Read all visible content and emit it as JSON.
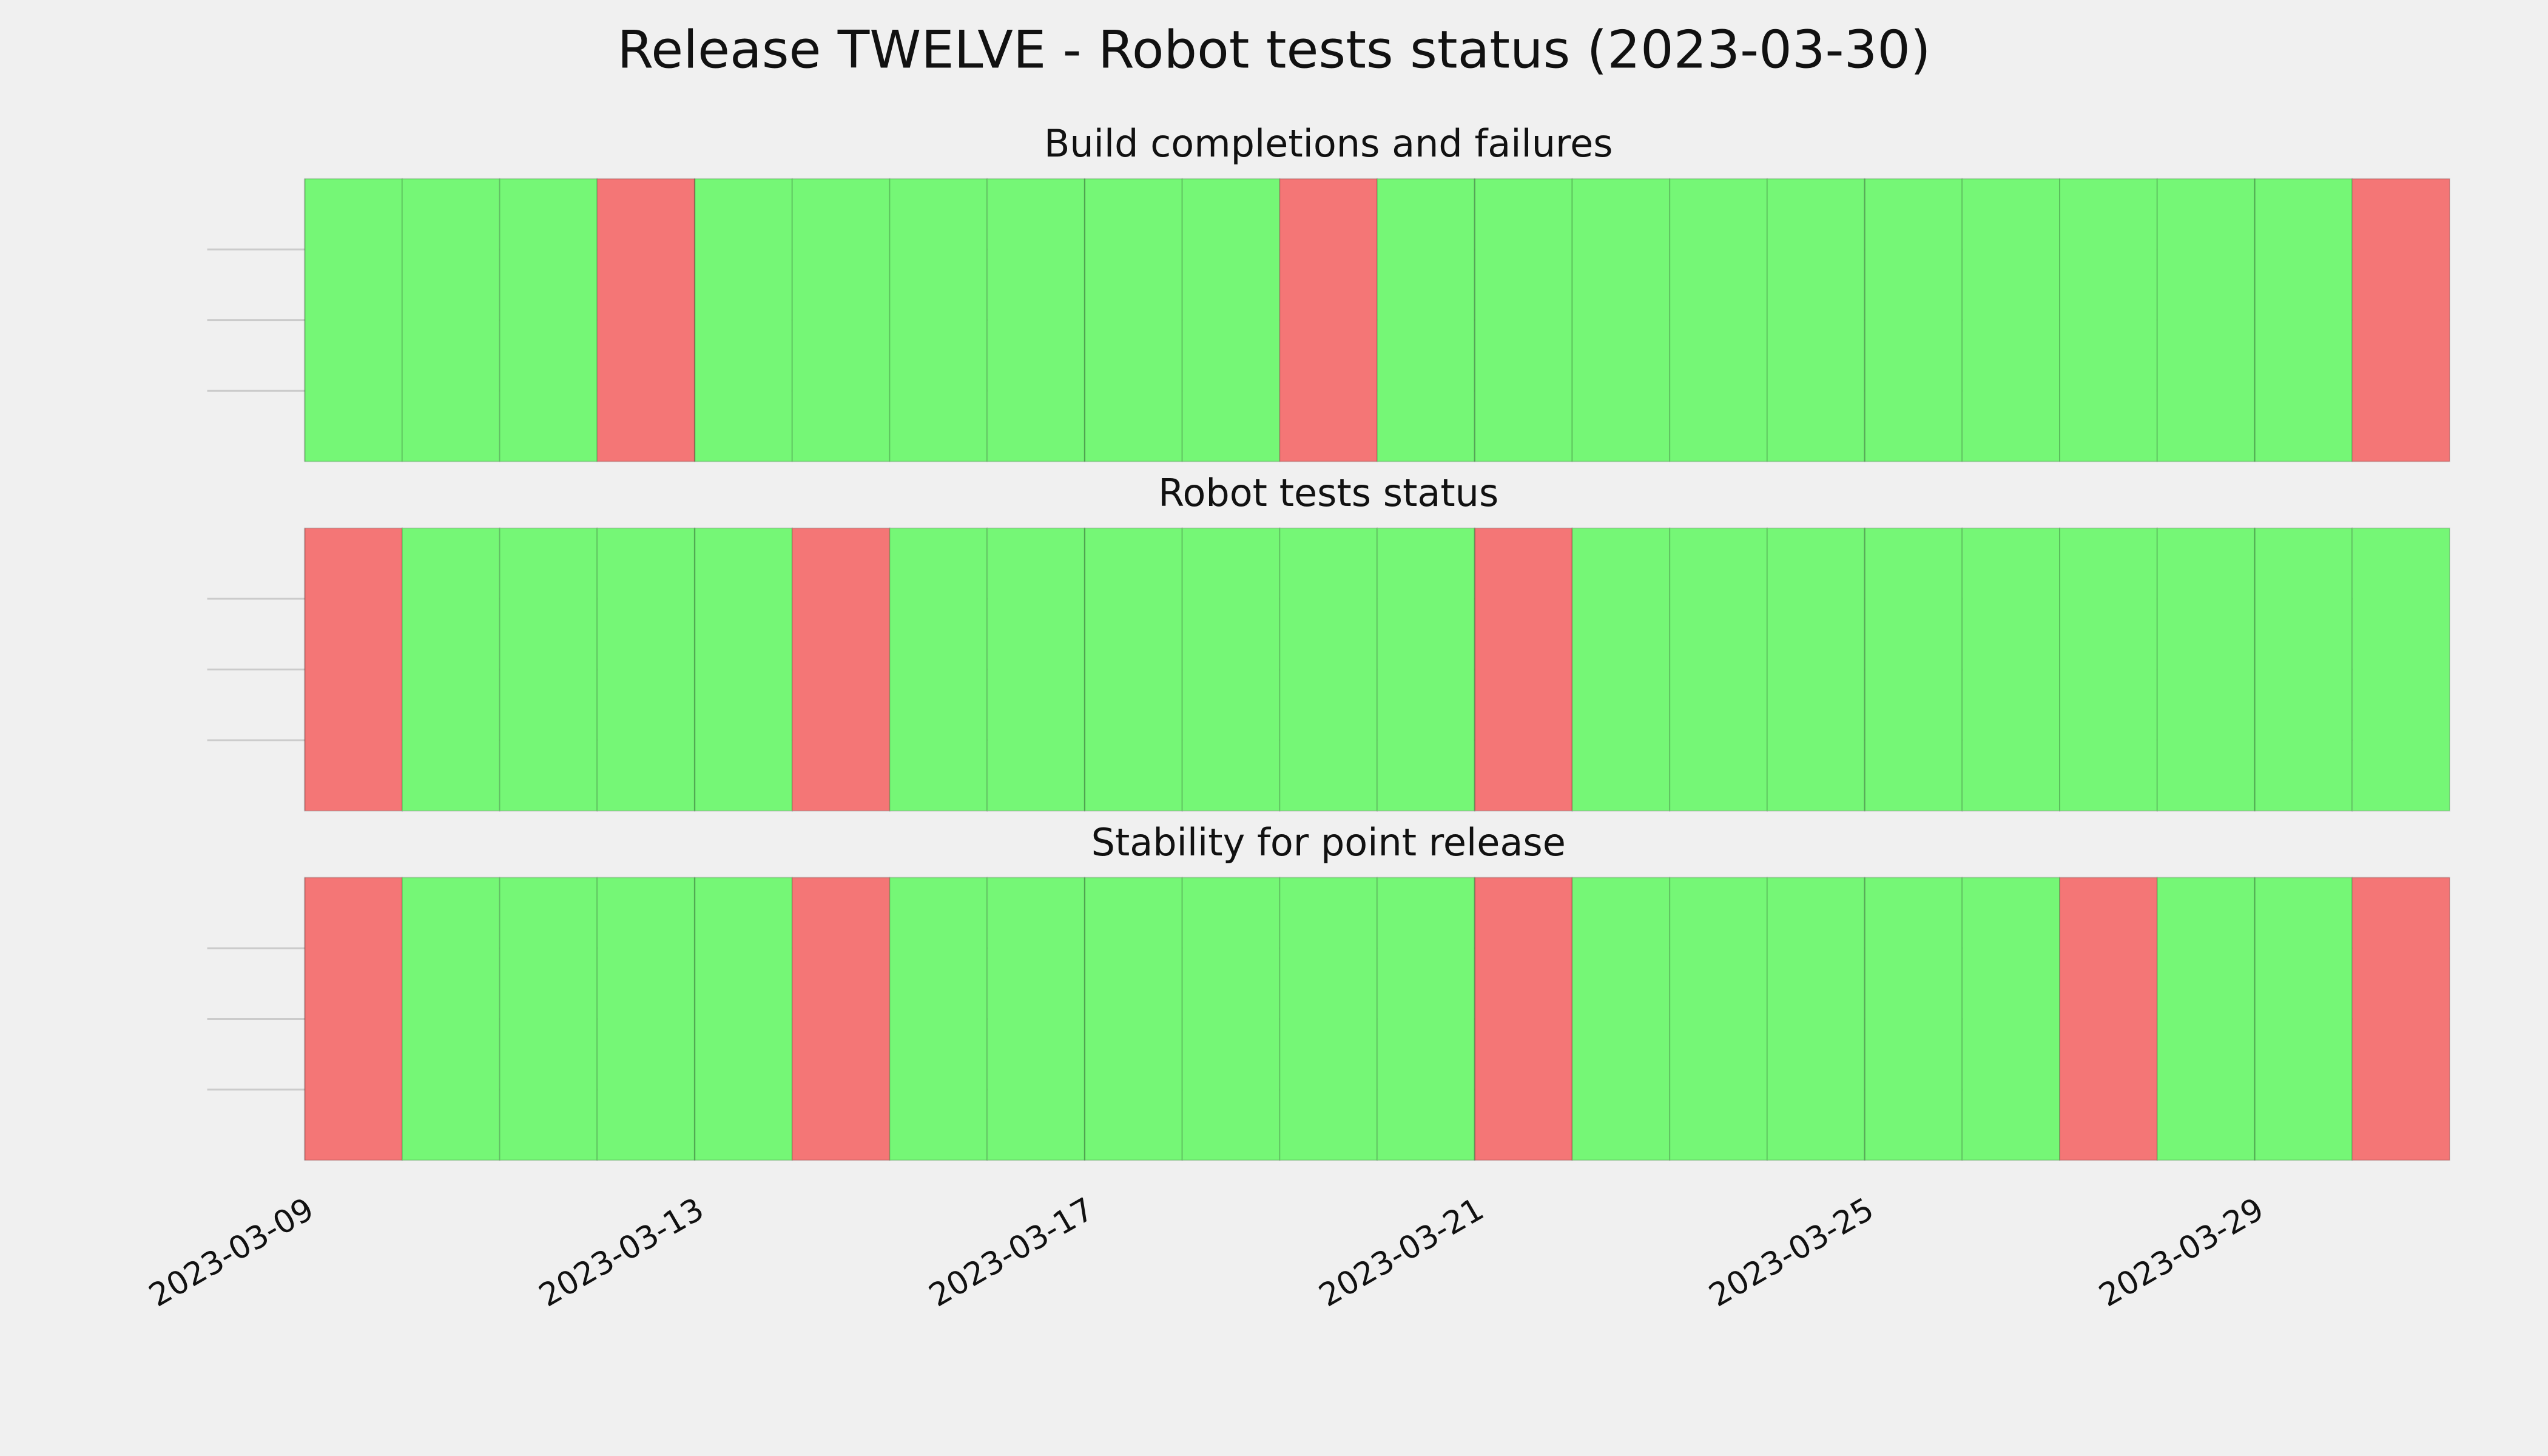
{
  "title": "Release TWELVE - Robot tests status (2023-03-30)",
  "chart_data": [
    {
      "type": "status_timeline",
      "title": "Build completions and failures",
      "x": [
        "2023-03-09",
        "2023-03-10",
        "2023-03-11",
        "2023-03-12",
        "2023-03-13",
        "2023-03-14",
        "2023-03-15",
        "2023-03-16",
        "2023-03-17",
        "2023-03-18",
        "2023-03-19",
        "2023-03-20",
        "2023-03-21",
        "2023-03-22",
        "2023-03-23",
        "2023-03-24",
        "2023-03-25",
        "2023-03-26",
        "2023-03-27",
        "2023-03-28",
        "2023-03-29",
        "2023-03-30"
      ],
      "values": [
        1,
        1,
        1,
        0,
        1,
        1,
        1,
        1,
        1,
        1,
        0,
        1,
        1,
        1,
        1,
        1,
        1,
        1,
        1,
        1,
        1,
        0
      ],
      "colors": [
        "#f47676",
        "#75f776"
      ],
      "xlim": [
        "2023-03-08",
        "2023-03-31"
      ],
      "xticks": [],
      "grid": true
    },
    {
      "type": "status_timeline",
      "title": "Robot tests status",
      "x": [
        "2023-03-09",
        "2023-03-10",
        "2023-03-11",
        "2023-03-12",
        "2023-03-13",
        "2023-03-14",
        "2023-03-15",
        "2023-03-16",
        "2023-03-17",
        "2023-03-18",
        "2023-03-19",
        "2023-03-20",
        "2023-03-21",
        "2023-03-22",
        "2023-03-23",
        "2023-03-24",
        "2023-03-25",
        "2023-03-26",
        "2023-03-27",
        "2023-03-28",
        "2023-03-29",
        "2023-03-30"
      ],
      "values": [
        0,
        1,
        1,
        1,
        1,
        0,
        1,
        1,
        1,
        1,
        1,
        1,
        0,
        1,
        1,
        1,
        1,
        1,
        1,
        1,
        1,
        1
      ],
      "colors": [
        "#f47676",
        "#75f776"
      ],
      "xlim": [
        "2023-03-08",
        "2023-03-31"
      ],
      "xticks": [],
      "grid": true
    },
    {
      "type": "status_timeline",
      "title": "Stability for point release",
      "x": [
        "2023-03-09",
        "2023-03-10",
        "2023-03-11",
        "2023-03-12",
        "2023-03-13",
        "2023-03-14",
        "2023-03-15",
        "2023-03-16",
        "2023-03-17",
        "2023-03-18",
        "2023-03-19",
        "2023-03-20",
        "2023-03-21",
        "2023-03-22",
        "2023-03-23",
        "2023-03-24",
        "2023-03-25",
        "2023-03-26",
        "2023-03-27",
        "2023-03-28",
        "2023-03-29",
        "2023-03-30"
      ],
      "values": [
        0,
        1,
        1,
        1,
        1,
        0,
        1,
        1,
        1,
        1,
        1,
        1,
        0,
        1,
        1,
        1,
        1,
        1,
        0,
        1,
        1,
        0
      ],
      "colors": [
        "#f47676",
        "#75f776"
      ],
      "xlim": [
        "2023-03-08",
        "2023-03-31"
      ],
      "xticks": [
        "2023-03-09",
        "2023-03-13",
        "2023-03-17",
        "2023-03-21",
        "2023-03-25",
        "2023-03-29"
      ],
      "grid": true
    }
  ]
}
